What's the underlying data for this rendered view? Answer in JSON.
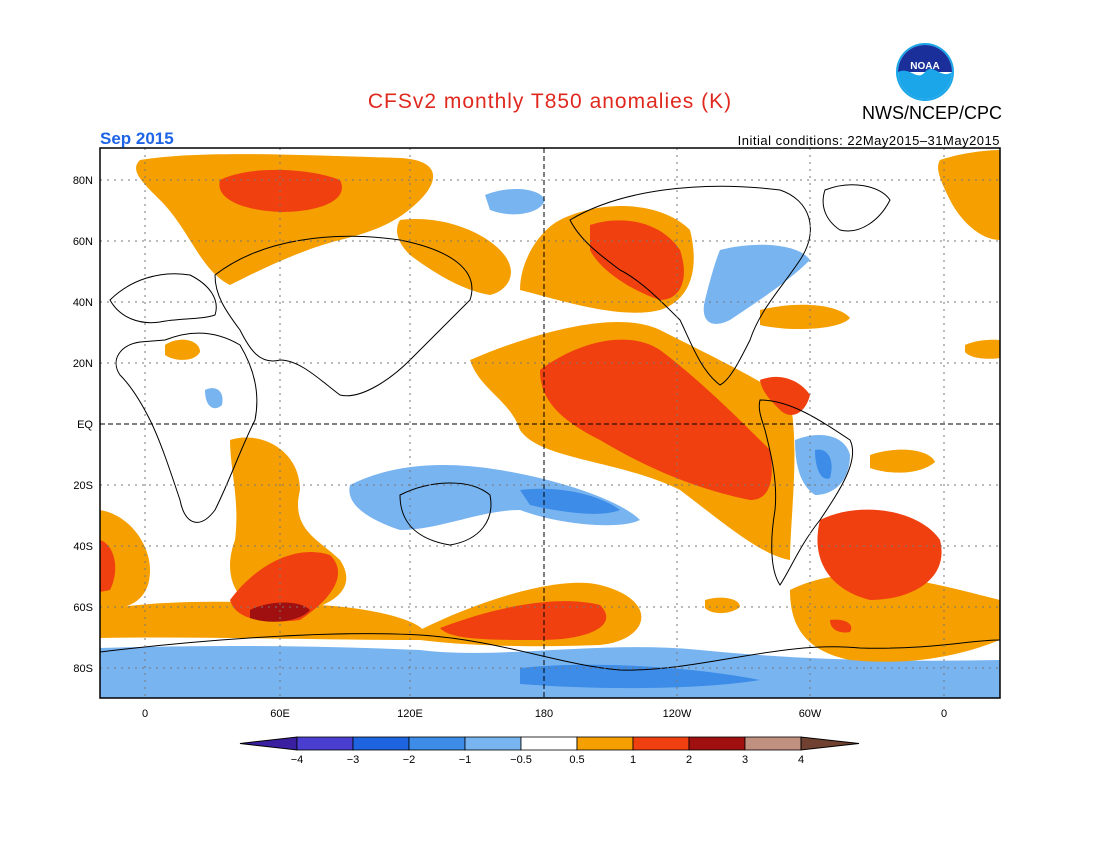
{
  "header": {
    "title": "CFSv2 monthly T850 anomalies (K)",
    "agency": "NWS/NCEP/CPC",
    "period": "Sep 2015",
    "initial_conditions": "Initial conditions: 22May2015–31May2015",
    "logo_text": "NOAA"
  },
  "colors": {
    "title": "#e0281e",
    "period": "#1e64e6",
    "ocean_bg": "#ffffff",
    "coast": "#000000"
  },
  "axes": {
    "lat_ticks": [
      {
        "value": 80,
        "label": "80N"
      },
      {
        "value": 60,
        "label": "60N"
      },
      {
        "value": 40,
        "label": "40N"
      },
      {
        "value": 20,
        "label": "20N"
      },
      {
        "value": 0,
        "label": "EQ"
      },
      {
        "value": -20,
        "label": "20S"
      },
      {
        "value": -40,
        "label": "40S"
      },
      {
        "value": -60,
        "label": "60S"
      },
      {
        "value": -80,
        "label": "80S"
      }
    ],
    "lon_ticks": [
      {
        "value": 0,
        "label": "0"
      },
      {
        "value": 60,
        "label": "60E"
      },
      {
        "value": 120,
        "label": "120E"
      },
      {
        "value": 180,
        "label": "180"
      },
      {
        "value": 240,
        "label": "120W"
      },
      {
        "value": 300,
        "label": "60W"
      },
      {
        "value": 360,
        "label": "0"
      }
    ],
    "lon_range": [
      -20,
      380
    ],
    "lat_range": [
      -90,
      90
    ]
  },
  "colorbar": {
    "labels": [
      "−4",
      "−3",
      "−2",
      "−1",
      "−0.5",
      "0.5",
      "1",
      "2",
      "3",
      "4"
    ],
    "colors": [
      "#3a1fa0",
      "#4a3ed0",
      "#1e64e0",
      "#3c8ce8",
      "#78b4f0",
      "#ffffff",
      "#f5a000",
      "#f04010",
      "#a01010",
      "#c09080",
      "#704030"
    ]
  },
  "anomaly_legend": {
    "cold_1": "#78b4f0",
    "cold_2": "#3c8ce8",
    "warm_1": "#f5a000",
    "warm_2": "#f04010",
    "warm_3": "#a01010"
  }
}
